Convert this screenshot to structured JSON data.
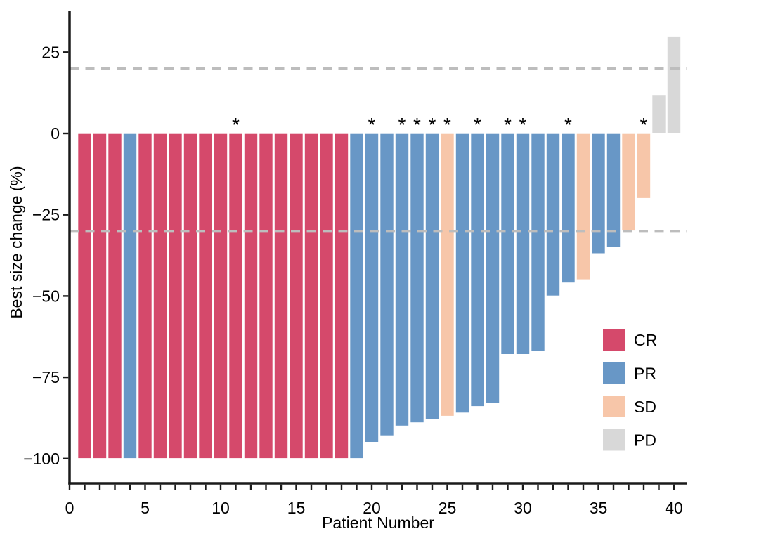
{
  "chart_data": {
    "type": "bar",
    "subtype": "waterfall",
    "title": "",
    "xlabel": "Patient Number",
    "ylabel": "Best size change (%)",
    "xlim": [
      -0.2,
      40.8
    ],
    "ylim": [
      -108,
      38
    ],
    "grid": false,
    "x_ticks_labeled": [
      0,
      5,
      10,
      15,
      20,
      25,
      30,
      35,
      40
    ],
    "x_minor_tick_every": 1,
    "x_minor_tick_range": [
      0,
      40
    ],
    "y_ticks": [
      25,
      0,
      -25,
      -50,
      -75,
      -100
    ],
    "reference_lines": [
      {
        "y": 20,
        "style": "dashed",
        "color": "#BDBDBD"
      },
      {
        "y": -30,
        "style": "dashed",
        "color": "#BDBDBD"
      }
    ],
    "annotation_symbol": "*",
    "annotation_meaning_visible": false,
    "legend_position": "inside-right",
    "legend": [
      {
        "label": "CR",
        "color": "#D5496B"
      },
      {
        "label": "PR",
        "color": "#6897C6"
      },
      {
        "label": "SD",
        "color": "#F7C6A9"
      },
      {
        "label": "PD",
        "color": "#D8D8D8"
      }
    ],
    "bar_stroke_color": "#FFFFFF",
    "axis_color": "#1A1A1A",
    "patients": [
      {
        "patient": 1,
        "value": -100,
        "response": "CR",
        "star": false
      },
      {
        "patient": 2,
        "value": -100,
        "response": "CR",
        "star": false
      },
      {
        "patient": 3,
        "value": -100,
        "response": "CR",
        "star": false
      },
      {
        "patient": 4,
        "value": -100,
        "response": "PR",
        "star": false
      },
      {
        "patient": 5,
        "value": -100,
        "response": "CR",
        "star": false
      },
      {
        "patient": 6,
        "value": -100,
        "response": "CR",
        "star": false
      },
      {
        "patient": 7,
        "value": -100,
        "response": "CR",
        "star": false
      },
      {
        "patient": 8,
        "value": -100,
        "response": "CR",
        "star": false
      },
      {
        "patient": 9,
        "value": -100,
        "response": "CR",
        "star": false
      },
      {
        "patient": 10,
        "value": -100,
        "response": "CR",
        "star": false
      },
      {
        "patient": 11,
        "value": -100,
        "response": "CR",
        "star": true
      },
      {
        "patient": 12,
        "value": -100,
        "response": "CR",
        "star": false
      },
      {
        "patient": 13,
        "value": -100,
        "response": "CR",
        "star": false
      },
      {
        "patient": 14,
        "value": -100,
        "response": "CR",
        "star": false
      },
      {
        "patient": 15,
        "value": -100,
        "response": "CR",
        "star": false
      },
      {
        "patient": 16,
        "value": -100,
        "response": "CR",
        "star": false
      },
      {
        "patient": 17,
        "value": -100,
        "response": "CR",
        "star": false
      },
      {
        "patient": 18,
        "value": -100,
        "response": "CR",
        "star": false
      },
      {
        "patient": 19,
        "value": -100,
        "response": "PR",
        "star": false
      },
      {
        "patient": 20,
        "value": -95,
        "response": "PR",
        "star": true
      },
      {
        "patient": 21,
        "value": -93,
        "response": "PR",
        "star": false
      },
      {
        "patient": 22,
        "value": -90,
        "response": "PR",
        "star": true
      },
      {
        "patient": 23,
        "value": -89,
        "response": "PR",
        "star": true
      },
      {
        "patient": 24,
        "value": -88,
        "response": "PR",
        "star": true
      },
      {
        "patient": 25,
        "value": -87,
        "response": "SD",
        "star": true
      },
      {
        "patient": 26,
        "value": -86,
        "response": "PR",
        "star": false
      },
      {
        "patient": 27,
        "value": -84,
        "response": "PR",
        "star": true
      },
      {
        "patient": 28,
        "value": -83,
        "response": "PR",
        "star": false
      },
      {
        "patient": 29,
        "value": -68,
        "response": "PR",
        "star": true
      },
      {
        "patient": 30,
        "value": -68,
        "response": "PR",
        "star": true
      },
      {
        "patient": 31,
        "value": -67,
        "response": "PR",
        "star": false
      },
      {
        "patient": 32,
        "value": -50,
        "response": "PR",
        "star": false
      },
      {
        "patient": 33,
        "value": -46,
        "response": "PR",
        "star": true
      },
      {
        "patient": 34,
        "value": -45,
        "response": "SD",
        "star": false
      },
      {
        "patient": 35,
        "value": -37,
        "response": "PR",
        "star": false
      },
      {
        "patient": 36,
        "value": -35,
        "response": "PR",
        "star": false
      },
      {
        "patient": 37,
        "value": -30,
        "response": "SD",
        "star": false
      },
      {
        "patient": 38,
        "value": -20,
        "response": "SD",
        "star": true
      },
      {
        "patient": 39,
        "value": 12,
        "response": "PD",
        "star": false
      },
      {
        "patient": 40,
        "value": 30,
        "response": "PD",
        "star": false
      }
    ]
  }
}
